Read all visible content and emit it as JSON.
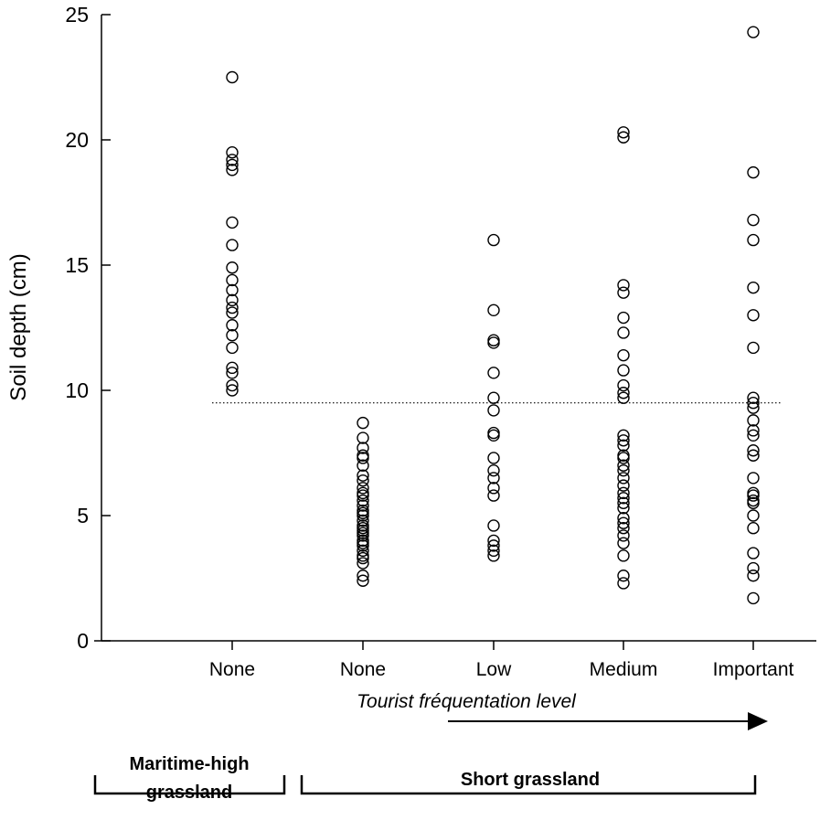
{
  "chart_data": {
    "type": "scatter",
    "title": "",
    "ylabel": "Soil depth  (cm)",
    "xlabel": "Tourist fréquentation level",
    "ylim": [
      0,
      25
    ],
    "yticks": [
      0,
      5,
      10,
      15,
      20,
      25
    ],
    "categories": [
      "None",
      "None",
      "Low",
      "Medium",
      "Important"
    ],
    "reference_line": {
      "y": 9.5,
      "style": "dotted"
    },
    "arrow_direction": "right",
    "groups": [
      {
        "label": "Maritime-high\ngrassland",
        "categories": [
          0
        ]
      },
      {
        "label": "Short grassland",
        "categories": [
          1,
          2,
          3,
          4
        ]
      }
    ],
    "series": [
      {
        "category": 0,
        "values": [
          22.5,
          19.5,
          19.2,
          19.0,
          18.8,
          16.7,
          15.8,
          14.9,
          14.4,
          14.0,
          13.6,
          13.3,
          13.1,
          12.6,
          12.2,
          11.7,
          10.9,
          10.7,
          10.2,
          10.0
        ]
      },
      {
        "category": 1,
        "values": [
          8.7,
          8.1,
          7.7,
          7.4,
          7.3,
          7.0,
          6.6,
          6.4,
          6.1,
          5.9,
          5.8,
          5.6,
          5.4,
          5.2,
          5.1,
          5.0,
          4.8,
          4.6,
          4.5,
          4.4,
          4.3,
          4.2,
          4.0,
          3.9,
          3.8,
          3.6,
          3.4,
          3.3,
          3.1,
          2.6,
          2.4
        ]
      },
      {
        "category": 2,
        "values": [
          16.0,
          13.2,
          12.0,
          11.9,
          10.7,
          9.7,
          9.2,
          8.3,
          8.2,
          7.3,
          6.8,
          6.5,
          6.1,
          5.8,
          4.6,
          4.0,
          3.8,
          3.6,
          3.4
        ]
      },
      {
        "category": 3,
        "values": [
          20.3,
          20.1,
          14.2,
          13.9,
          12.9,
          12.3,
          11.4,
          10.8,
          10.2,
          9.9,
          9.7,
          8.2,
          8.0,
          7.8,
          7.4,
          7.3,
          7.0,
          6.8,
          6.5,
          6.2,
          5.9,
          5.7,
          5.5,
          5.3,
          4.9,
          4.7,
          4.5,
          4.2,
          3.9,
          3.4,
          2.6,
          2.3
        ]
      },
      {
        "category": 4,
        "values": [
          24.3,
          18.7,
          16.8,
          16.0,
          14.1,
          13.0,
          11.7,
          9.7,
          9.5,
          9.3,
          8.8,
          8.4,
          8.2,
          7.6,
          7.4,
          6.5,
          5.9,
          5.8,
          5.6,
          5.5,
          5.0,
          4.5,
          3.5,
          2.9,
          2.6,
          1.7
        ]
      }
    ]
  }
}
